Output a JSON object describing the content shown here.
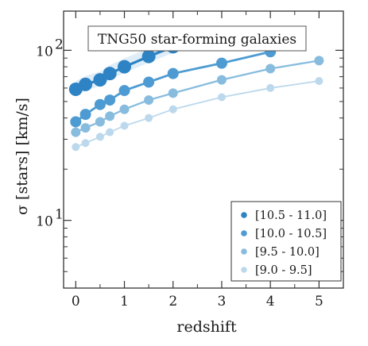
{
  "chart_data": {
    "type": "line",
    "title": "TNG50 star-forming galaxies",
    "xlabel": "redshift",
    "ylabel": "σ [stars] [km/s]",
    "yscale": "log",
    "xlim": [
      -0.25,
      5.5
    ],
    "ylim": [
      4,
      170
    ],
    "xticks": [
      "0",
      "1",
      "2",
      "3",
      "4",
      "5"
    ],
    "yticks": [
      {
        "value": 10,
        "label": "10",
        "exp": "1"
      },
      {
        "value": 100,
        "label": "10",
        "exp": "2"
      }
    ],
    "legend_position": "lower-right",
    "x": [
      0,
      0.2,
      0.5,
      0.7,
      1.0,
      1.5,
      2.0,
      3.0,
      4.0,
      5.0
    ],
    "series": [
      {
        "name": "[10.5 - 11.0]",
        "color": "#2d83c4",
        "band": true,
        "x": [
          0,
          0.2,
          0.5,
          0.7,
          1.0,
          1.5,
          2.0,
          3.0
        ],
        "values": [
          59,
          63,
          67,
          73,
          80,
          92,
          105,
          125
        ]
      },
      {
        "name": "[10.0 - 10.5]",
        "color": "#4d9bd2",
        "x": [
          0,
          0.2,
          0.5,
          0.7,
          1.0,
          1.5,
          2.0,
          3.0,
          4.0
        ],
        "values": [
          38,
          42,
          48,
          51,
          58,
          65,
          73,
          84,
          98
        ]
      },
      {
        "name": "[9.5 - 10.0]",
        "color": "#88bcde",
        "x": [
          0,
          0.2,
          0.5,
          0.7,
          1.0,
          1.5,
          2.0,
          3.0,
          4.0,
          5.0
        ],
        "values": [
          33,
          35,
          38,
          41,
          45,
          51,
          56,
          67,
          78,
          87
        ]
      },
      {
        "name": "[9.0 - 9.5]",
        "color": "#bcd8ec",
        "x": [
          0,
          0.2,
          0.5,
          0.7,
          1.0,
          1.5,
          2.0,
          3.0,
          4.0,
          5.0
        ],
        "values": [
          27,
          28.5,
          31,
          33,
          36,
          40,
          45,
          53,
          60,
          66
        ]
      }
    ]
  }
}
